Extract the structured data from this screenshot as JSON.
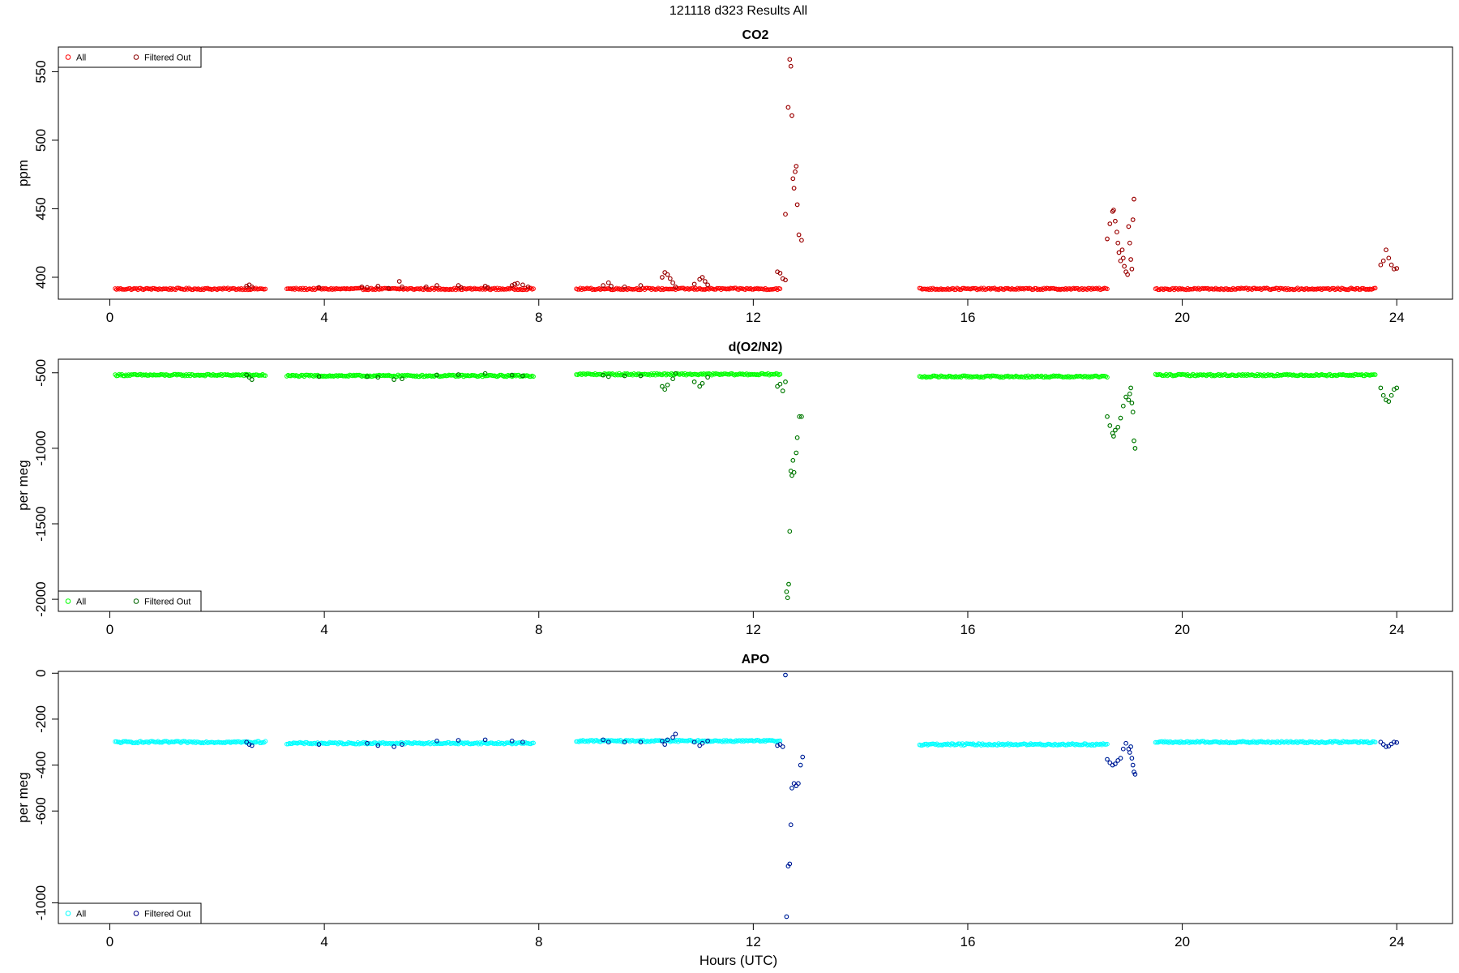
{
  "page": {
    "title": "121118   d323   Results All",
    "xlabel": "Hours (UTC)"
  },
  "chart_data": [
    {
      "type": "scatter",
      "title": "CO2",
      "xlabel": "Hours (UTC)",
      "ylabel": "ppm",
      "xlim": [
        -0.96,
        25.04
      ],
      "ylim": [
        384,
        568
      ],
      "xticks": [
        0,
        4,
        8,
        12,
        16,
        20,
        24
      ],
      "yticks": [
        400,
        450,
        500,
        550
      ],
      "legend_position": "top-left",
      "grid": false,
      "series": [
        {
          "name": "All",
          "color": "#FF0000",
          "baseline": [
            {
              "start": 0.1,
              "end": 2.9,
              "value": 391.5
            },
            {
              "start": 3.3,
              "end": 7.9,
              "value": 391.5
            },
            {
              "start": 8.7,
              "end": 12.5,
              "value": 391.5
            },
            {
              "start": 15.1,
              "end": 18.6,
              "value": 391.5
            },
            {
              "start": 19.5,
              "end": 23.6,
              "value": 391.5
            }
          ]
        },
        {
          "name": "Filtered Out",
          "color": "#8B0000",
          "points": [
            [
              2.55,
              393.5
            ],
            [
              2.6,
              394.5
            ],
            [
              2.65,
              393.0
            ],
            [
              3.9,
              392.5
            ],
            [
              4.7,
              393.0
            ],
            [
              4.8,
              392.5
            ],
            [
              5.0,
              393.5
            ],
            [
              5.2,
              392.0
            ],
            [
              5.4,
              397.0
            ],
            [
              5.45,
              393.0
            ],
            [
              5.9,
              393.0
            ],
            [
              6.1,
              394.0
            ],
            [
              6.5,
              394.0
            ],
            [
              6.55,
              392.5
            ],
            [
              7.0,
              393.5
            ],
            [
              7.05,
              392.5
            ],
            [
              7.5,
              394.0
            ],
            [
              7.55,
              395.0
            ],
            [
              7.6,
              395.5
            ],
            [
              7.7,
              394.5
            ],
            [
              7.8,
              393.0
            ],
            [
              9.2,
              394.0
            ],
            [
              9.3,
              396.0
            ],
            [
              9.35,
              393.5
            ],
            [
              9.6,
              393.0
            ],
            [
              9.9,
              394.0
            ],
            [
              10.3,
              400.0
            ],
            [
              10.35,
              403.5
            ],
            [
              10.4,
              402.0
            ],
            [
              10.45,
              399.0
            ],
            [
              10.5,
              396.0
            ],
            [
              10.55,
              393.0
            ],
            [
              10.9,
              395.0
            ],
            [
              11.0,
              398.5
            ],
            [
              11.05,
              400.0
            ],
            [
              11.1,
              397.0
            ],
            [
              11.15,
              394.5
            ],
            [
              12.45,
              404.0
            ],
            [
              12.5,
              403.0
            ],
            [
              12.55,
              399.0
            ],
            [
              12.6,
              398.0
            ],
            [
              12.6,
              446.0
            ],
            [
              12.65,
              524.0
            ],
            [
              12.68,
              559.0
            ],
            [
              12.7,
              554.0
            ],
            [
              12.72,
              518.0
            ],
            [
              12.74,
              472.0
            ],
            [
              12.76,
              465.0
            ],
            [
              12.78,
              477.0
            ],
            [
              12.8,
              481.0
            ],
            [
              12.82,
              453.0
            ],
            [
              12.85,
              431.0
            ],
            [
              12.9,
              427.0
            ],
            [
              18.6,
              428.0
            ],
            [
              18.65,
              439.0
            ],
            [
              18.7,
              448.0
            ],
            [
              18.72,
              449.0
            ],
            [
              18.75,
              441.0
            ],
            [
              18.78,
              433.0
            ],
            [
              18.8,
              425.0
            ],
            [
              18.82,
              418.0
            ],
            [
              18.85,
              412.0
            ],
            [
              18.88,
              420.0
            ],
            [
              18.9,
              414.0
            ],
            [
              18.92,
              408.0
            ],
            [
              18.95,
              404.0
            ],
            [
              18.98,
              402.0
            ],
            [
              19.0,
              437.0
            ],
            [
              19.02,
              425.0
            ],
            [
              19.04,
              413.0
            ],
            [
              19.06,
              406.0
            ],
            [
              19.08,
              442.0
            ],
            [
              19.1,
              457.0
            ],
            [
              23.7,
              409.0
            ],
            [
              23.75,
              412.0
            ],
            [
              23.8,
              420.0
            ],
            [
              23.85,
              414.0
            ],
            [
              23.9,
              409.0
            ],
            [
              23.95,
              406.0
            ],
            [
              24.0,
              406.5
            ]
          ]
        }
      ]
    },
    {
      "type": "scatter",
      "title": "d(O2/N2)",
      "xlabel": "Hours (UTC)",
      "ylabel": "per meg",
      "xlim": [
        -0.96,
        25.04
      ],
      "ylim": [
        -2080,
        -410
      ],
      "xticks": [
        0,
        4,
        8,
        12,
        16,
        20,
        24
      ],
      "yticks": [
        -500,
        -1000,
        -1500,
        -2000
      ],
      "legend_position": "bottom-left",
      "grid": false,
      "series": [
        {
          "name": "All",
          "color": "#00FF00",
          "baseline": [
            {
              "start": 0.1,
              "end": 2.9,
              "value": -515
            },
            {
              "start": 3.3,
              "end": 7.9,
              "value": -520
            },
            {
              "start": 8.7,
              "end": 12.5,
              "value": -510
            },
            {
              "start": 15.1,
              "end": 18.6,
              "value": -525
            },
            {
              "start": 19.5,
              "end": 23.6,
              "value": -515
            }
          ]
        },
        {
          "name": "Filtered Out",
          "color": "#006400",
          "points": [
            [
              2.55,
              -515
            ],
            [
              2.6,
              -530
            ],
            [
              2.65,
              -545
            ],
            [
              3.9,
              -525
            ],
            [
              4.8,
              -525
            ],
            [
              5.0,
              -530
            ],
            [
              5.3,
              -545
            ],
            [
              5.45,
              -540
            ],
            [
              6.1,
              -515
            ],
            [
              6.5,
              -512
            ],
            [
              7.0,
              -505
            ],
            [
              7.5,
              -515
            ],
            [
              7.7,
              -520
            ],
            [
              9.2,
              -515
            ],
            [
              9.3,
              -525
            ],
            [
              9.6,
              -520
            ],
            [
              9.9,
              -520
            ],
            [
              10.3,
              -590
            ],
            [
              10.35,
              -610
            ],
            [
              10.4,
              -580
            ],
            [
              10.5,
              -540
            ],
            [
              10.55,
              -505
            ],
            [
              10.9,
              -560
            ],
            [
              11.0,
              -590
            ],
            [
              11.05,
              -570
            ],
            [
              11.15,
              -530
            ],
            [
              12.45,
              -590
            ],
            [
              12.5,
              -575
            ],
            [
              12.55,
              -620
            ],
            [
              12.6,
              -560
            ],
            [
              12.62,
              -1950
            ],
            [
              12.64,
              -1990
            ],
            [
              12.66,
              -1900
            ],
            [
              12.68,
              -1550
            ],
            [
              12.7,
              -1150
            ],
            [
              12.72,
              -1180
            ],
            [
              12.74,
              -1080
            ],
            [
              12.76,
              -1160
            ],
            [
              12.8,
              -1030
            ],
            [
              12.82,
              -930
            ],
            [
              12.86,
              -790
            ],
            [
              12.9,
              -790
            ],
            [
              18.6,
              -790
            ],
            [
              18.65,
              -850
            ],
            [
              18.7,
              -900
            ],
            [
              18.72,
              -920
            ],
            [
              18.75,
              -880
            ],
            [
              18.8,
              -860
            ],
            [
              18.85,
              -800
            ],
            [
              18.9,
              -720
            ],
            [
              18.95,
              -660
            ],
            [
              19.0,
              -680
            ],
            [
              19.02,
              -640
            ],
            [
              19.04,
              -600
            ],
            [
              19.06,
              -700
            ],
            [
              19.08,
              -760
            ],
            [
              19.1,
              -950
            ],
            [
              19.12,
              -1000
            ],
            [
              23.7,
              -600
            ],
            [
              23.75,
              -650
            ],
            [
              23.8,
              -680
            ],
            [
              23.85,
              -690
            ],
            [
              23.9,
              -650
            ],
            [
              23.95,
              -610
            ],
            [
              24.0,
              -600
            ]
          ]
        }
      ]
    },
    {
      "type": "scatter",
      "title": "APO",
      "xlabel": "Hours (UTC)",
      "ylabel": "per meg",
      "xlim": [
        -0.96,
        25.04
      ],
      "ylim": [
        -1090,
        8
      ],
      "xticks": [
        0,
        4,
        8,
        12,
        16,
        20,
        24
      ],
      "yticks": [
        0,
        -200,
        -400,
        -600,
        -1000
      ],
      "legend_position": "bottom-left",
      "grid": false,
      "series": [
        {
          "name": "All",
          "color": "#00FFFF",
          "baseline": [
            {
              "start": 0.1,
              "end": 2.9,
              "value": -300
            },
            {
              "start": 3.3,
              "end": 7.9,
              "value": -305
            },
            {
              "start": 8.7,
              "end": 12.5,
              "value": -295
            },
            {
              "start": 15.1,
              "end": 18.6,
              "value": -310
            },
            {
              "start": 19.5,
              "end": 23.6,
              "value": -300
            }
          ]
        },
        {
          "name": "Filtered Out",
          "color": "#00008B",
          "points": [
            [
              2.55,
              -300
            ],
            [
              2.6,
              -310
            ],
            [
              2.65,
              -315
            ],
            [
              3.9,
              -310
            ],
            [
              4.8,
              -305
            ],
            [
              5.0,
              -315
            ],
            [
              5.3,
              -320
            ],
            [
              5.45,
              -310
            ],
            [
              6.1,
              -295
            ],
            [
              6.5,
              -292
            ],
            [
              7.0,
              -290
            ],
            [
              7.5,
              -295
            ],
            [
              7.7,
              -300
            ],
            [
              9.2,
              -290
            ],
            [
              9.3,
              -300
            ],
            [
              9.6,
              -300
            ],
            [
              9.9,
              -300
            ],
            [
              10.3,
              -295
            ],
            [
              10.35,
              -310
            ],
            [
              10.4,
              -290
            ],
            [
              10.5,
              -280
            ],
            [
              10.55,
              -265
            ],
            [
              10.9,
              -300
            ],
            [
              11.0,
              -315
            ],
            [
              11.05,
              -305
            ],
            [
              11.15,
              -295
            ],
            [
              12.45,
              -315
            ],
            [
              12.5,
              -310
            ],
            [
              12.55,
              -320
            ],
            [
              12.6,
              -8
            ],
            [
              12.62,
              -1060
            ],
            [
              12.65,
              -840
            ],
            [
              12.68,
              -830
            ],
            [
              12.7,
              -660
            ],
            [
              12.72,
              -500
            ],
            [
              12.76,
              -480
            ],
            [
              12.8,
              -490
            ],
            [
              12.84,
              -480
            ],
            [
              12.88,
              -400
            ],
            [
              12.92,
              -365
            ],
            [
              18.6,
              -375
            ],
            [
              18.65,
              -390
            ],
            [
              18.7,
              -400
            ],
            [
              18.75,
              -395
            ],
            [
              18.8,
              -380
            ],
            [
              18.85,
              -370
            ],
            [
              18.9,
              -330
            ],
            [
              18.95,
              -305
            ],
            [
              19.0,
              -330
            ],
            [
              19.02,
              -345
            ],
            [
              19.04,
              -320
            ],
            [
              19.06,
              -370
            ],
            [
              19.08,
              -400
            ],
            [
              19.1,
              -430
            ],
            [
              19.12,
              -440
            ],
            [
              23.7,
              -300
            ],
            [
              23.75,
              -310
            ],
            [
              23.8,
              -320
            ],
            [
              23.85,
              -318
            ],
            [
              23.9,
              -308
            ],
            [
              23.95,
              -300
            ],
            [
              24.0,
              -302
            ]
          ]
        }
      ]
    }
  ]
}
